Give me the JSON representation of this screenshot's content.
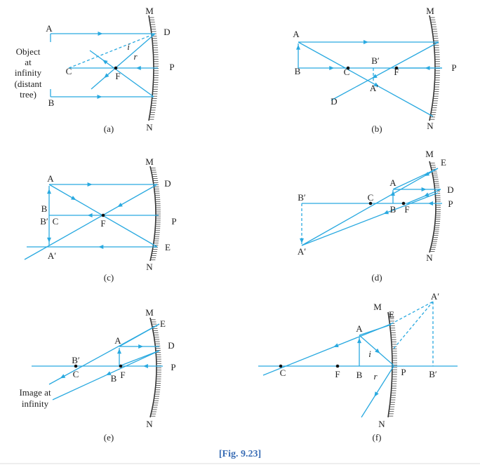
{
  "panels": [
    {
      "caption": "(a)",
      "labels": [
        "M",
        "A",
        "D",
        "i",
        "r",
        "Object",
        "at",
        "infinity",
        "(distant",
        "tree)",
        "C",
        "F",
        "P",
        "B",
        "N"
      ]
    },
    {
      "caption": "(b)",
      "labels": [
        "M",
        "A",
        "B′",
        "B",
        "C",
        "F",
        "P",
        "A′",
        "D",
        "N"
      ]
    },
    {
      "caption": "(c)",
      "labels": [
        "M",
        "A",
        "D",
        "B",
        "B′",
        "C",
        "F",
        "P",
        "A′",
        "E",
        "N"
      ]
    },
    {
      "caption": "(d)",
      "labels": [
        "M",
        "E",
        "A",
        "D",
        "B′",
        "C",
        "B",
        "F",
        "P",
        "A′",
        "N"
      ]
    },
    {
      "caption": "(e)",
      "labels": [
        "M",
        "E",
        "A",
        "D",
        "B′",
        "C",
        "B",
        "F",
        "P",
        "Image at",
        "infinity",
        "N"
      ]
    },
    {
      "caption": "(f)",
      "labels": [
        "M",
        "E",
        "A′",
        "A",
        "i",
        "C",
        "F",
        "B",
        "r",
        "P",
        "B′",
        "N"
      ]
    }
  ],
  "figure_caption": "[Fig. 9.23]"
}
